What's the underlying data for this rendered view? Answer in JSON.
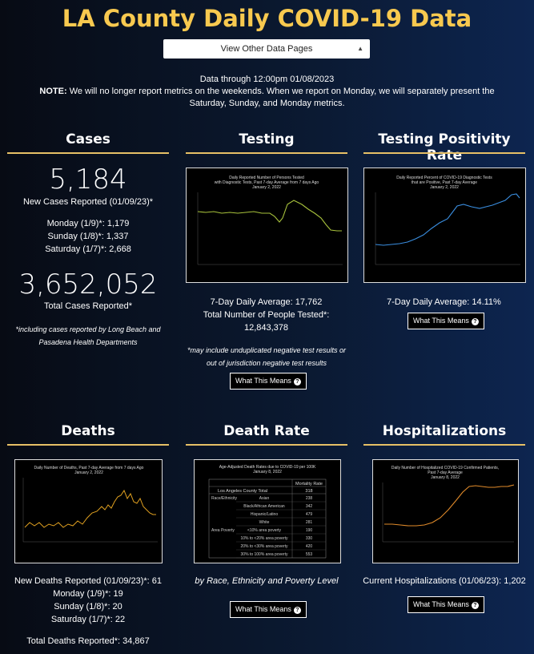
{
  "header": {
    "title": "LA County Daily COVID-19 Data",
    "select_label": "View Other Data Pages",
    "data_through": "Data through 12:00pm 01/08/2023",
    "note_bold": "NOTE:",
    "note_text": "We will no longer report metrics on the weekends. When we report on Monday, we will separately present the Saturday, Sunday, and Monday metrics."
  },
  "cases": {
    "title": "Cases",
    "new_count": "5,184",
    "new_label": "New Cases Reported (01/09/23)*",
    "monday": "Monday (1/9)*: 1,179",
    "sunday": "Sunday (1/8)*: 1,337",
    "saturday": "Saturday (1/7)*: 2,668",
    "total_count": "3,652,052",
    "total_label": "Total Cases Reported*",
    "footnote": "*including cases reported by Long Beach and Pasadena Health Departments"
  },
  "testing": {
    "title": "Testing",
    "chart_title": "Daily Reported Number of Persons Tested with Diagnostic Tests, Past 7-day Average from 7 days Ago January 2, 2022",
    "avg": "7-Day Daily Average: 17,762",
    "total_label": "Total Number of People Tested*:",
    "total": "12,843,378",
    "footnote": "*may include unduplicated negative test results or out of jurisdiction negative test results",
    "button": "What This Means",
    "line_color": "#a8c23c"
  },
  "positivity": {
    "title": "Testing Positivity Rate",
    "chart_title": "Daily Reported Percent of COVID-19 Diagnostic Tests that are Positive, Past 7-day Average January 2, 2022",
    "avg": "7-Day Daily Average: 14.11%",
    "button": "What This Means",
    "line_color": "#3a8ee0"
  },
  "deaths": {
    "title": "Deaths",
    "chart_title": "Daily Number of Deaths, Past 7-day Average from 7 days Ago January 2, 2022",
    "new": "New Deaths Reported (01/09/23)*: 61",
    "monday": "Monday (1/9)*: 19",
    "sunday": "Sunday (1/8)*: 20",
    "saturday": "Saturday (1/7)*: 22",
    "total": "Total Deaths Reported*: 34,867",
    "line_color": "#e0a020"
  },
  "death_rate": {
    "title": "Death Rate",
    "chart_title": "Age-Adjusted Death Rates due to COVID-19 per 100K January 8, 2022",
    "table_header": "Mortality Rate",
    "table_total_label": "Los Angeles County Total",
    "table_total": "318",
    "rows": [
      {
        "group": "Race/Ethnicity",
        "label": "Asian",
        "value": "238"
      },
      {
        "group": "",
        "label": "Black/African American",
        "value": "342"
      },
      {
        "group": "",
        "label": "Hispanic/Latino",
        "value": "479"
      },
      {
        "group": "",
        "label": "White",
        "value": "281"
      },
      {
        "group": "Area Poverty",
        "label": "<10% area poverty",
        "value": "190"
      },
      {
        "group": "",
        "label": "10% to <20% area poverty",
        "value": "330"
      },
      {
        "group": "",
        "label": "20% to <30% area poverty",
        "value": "420"
      },
      {
        "group": "",
        "label": "30% to 100% area poverty",
        "value": "553"
      }
    ],
    "caption": "by Race, Ethnicity and Poverty Level",
    "button": "What This Means"
  },
  "hospitalizations": {
    "title": "Hospitalizations",
    "chart_title": "Daily Number of Hospitalized COVID-19 Confirmed Patients, Past 7-day Average January 8, 2022",
    "current": "Current Hospitalizations (01/06/23): 1,202",
    "button": "What This Means",
    "line_color": "#e08a2a"
  }
}
